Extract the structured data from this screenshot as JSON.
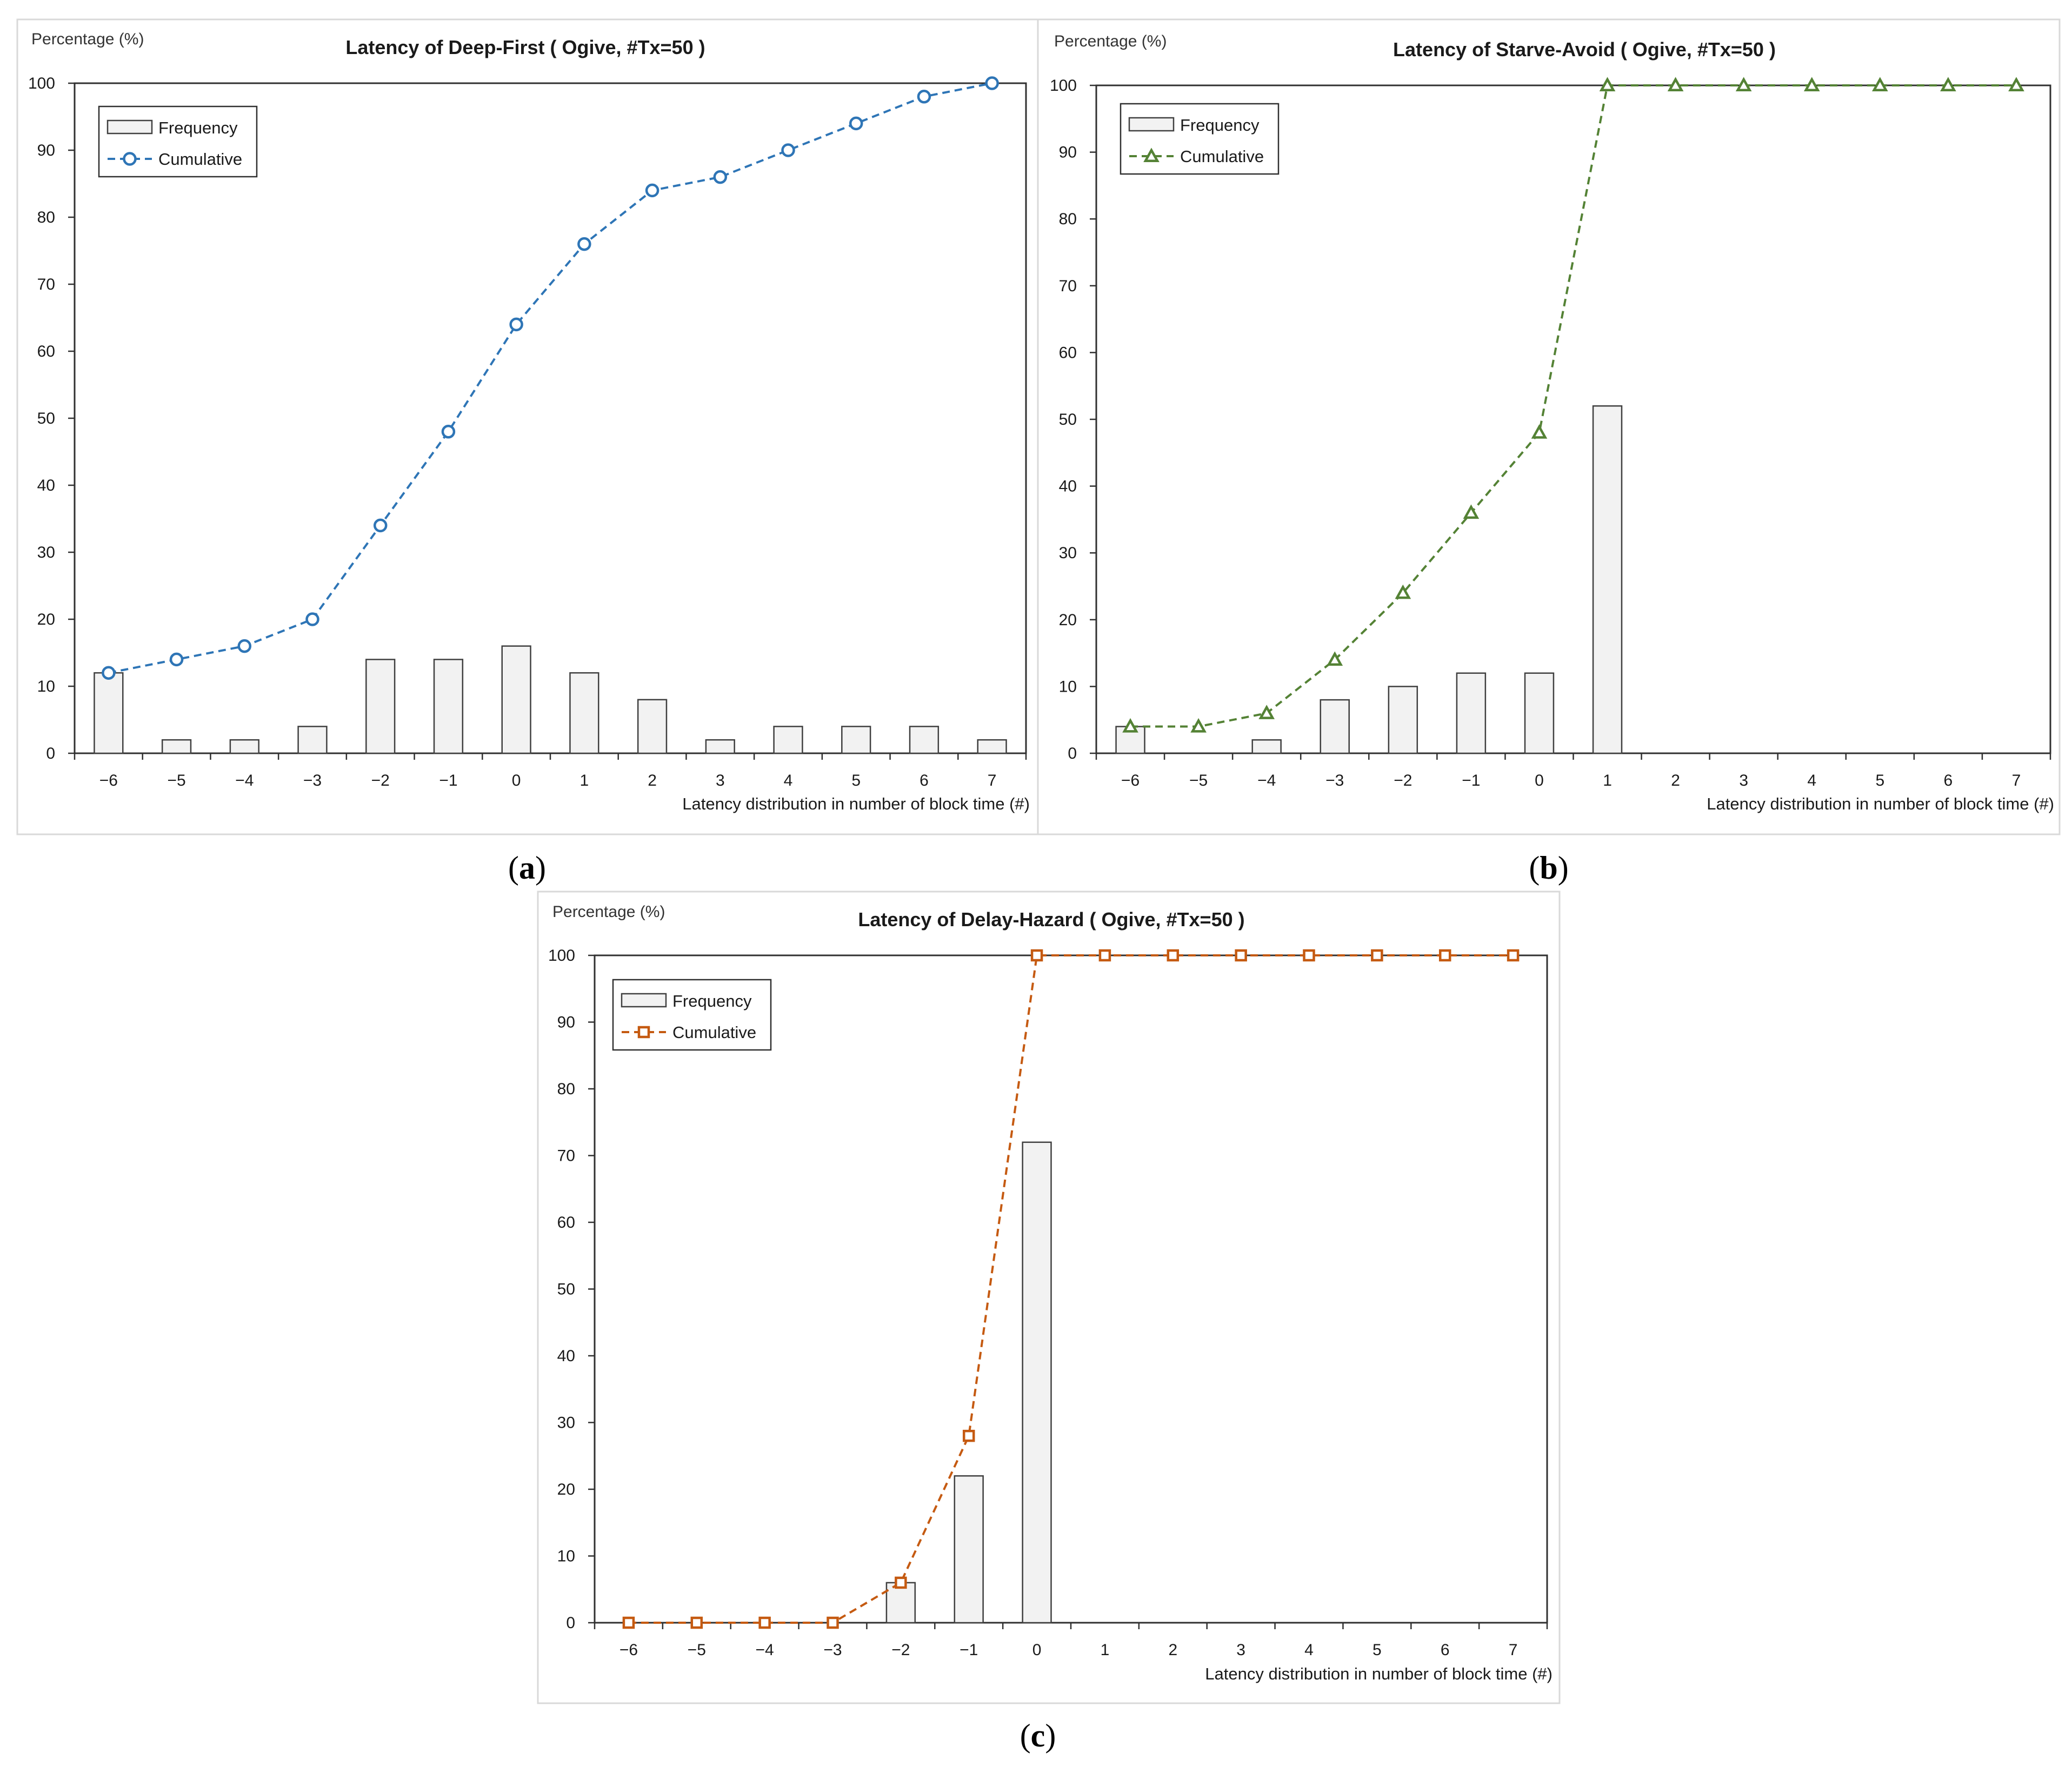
{
  "chart_data": [
    {
      "type": "bar+line",
      "title": "Latency of Deep-First ( Ogive, #Tx=50 )",
      "ylabel": "Percentage (%)",
      "xlabel": "Latency distribution in number of block time (#)",
      "caption_label": "a",
      "categories": [
        "−6",
        "−5",
        "−4",
        "−3",
        "−2",
        "−1",
        "0",
        "1",
        "2",
        "3",
        "4",
        "5",
        "6",
        "7"
      ],
      "y_ticks": [
        "0",
        "10",
        "20",
        "30",
        "40",
        "50",
        "60",
        "70",
        "80",
        "90",
        "100"
      ],
      "ylim": [
        0,
        100
      ],
      "legend_position": "top-left",
      "marker": "circle",
      "color": "#2e75b6",
      "series": [
        {
          "name": "Frequency",
          "type": "bar",
          "values": [
            12,
            2,
            2,
            4,
            14,
            14,
            16,
            12,
            8,
            2,
            4,
            4,
            4,
            2
          ]
        },
        {
          "name": "Cumulative",
          "type": "line",
          "values": [
            12,
            14,
            16,
            20,
            34,
            48,
            64,
            76,
            84,
            86,
            90,
            94,
            98,
            100
          ]
        }
      ]
    },
    {
      "type": "bar+line",
      "title": "Latency of Starve-Avoid ( Ogive, #Tx=50 )",
      "ylabel": "Percentage (%)",
      "xlabel": "Latency distribution in number of block time (#)",
      "caption_label": "b",
      "categories": [
        "−6",
        "−5",
        "−4",
        "−3",
        "−2",
        "−1",
        "0",
        "1",
        "2",
        "3",
        "4",
        "5",
        "6",
        "7"
      ],
      "y_ticks": [
        "0",
        "10",
        "20",
        "30",
        "40",
        "50",
        "60",
        "70",
        "80",
        "90",
        "100"
      ],
      "ylim": [
        0,
        100
      ],
      "legend_position": "top-left",
      "marker": "triangle",
      "color": "#548235",
      "series": [
        {
          "name": "Frequency",
          "type": "bar",
          "values": [
            4,
            0,
            2,
            8,
            10,
            12,
            12,
            52,
            0,
            0,
            0,
            0,
            0,
            0
          ]
        },
        {
          "name": "Cumulative",
          "type": "line",
          "values": [
            4,
            4,
            6,
            14,
            24,
            36,
            48,
            100,
            100,
            100,
            100,
            100,
            100,
            100
          ]
        }
      ]
    },
    {
      "type": "bar+line",
      "title": "Latency of Delay-Hazard ( Ogive, #Tx=50 )",
      "ylabel": "Percentage (%)",
      "xlabel": "Latency distribution in number of block time (#)",
      "caption_label": "c",
      "categories": [
        "−6",
        "−5",
        "−4",
        "−3",
        "−2",
        "−1",
        "0",
        "1",
        "2",
        "3",
        "4",
        "5",
        "6",
        "7"
      ],
      "y_ticks": [
        "0",
        "10",
        "20",
        "30",
        "40",
        "50",
        "60",
        "70",
        "80",
        "90",
        "100"
      ],
      "ylim": [
        0,
        100
      ],
      "legend_position": "top-left",
      "marker": "square",
      "color": "#c55a11",
      "series": [
        {
          "name": "Frequency",
          "type": "bar",
          "values": [
            0,
            0,
            0,
            0,
            6,
            22,
            72,
            0,
            0,
            0,
            0,
            0,
            0,
            0
          ]
        },
        {
          "name": "Cumulative",
          "type": "line",
          "values": [
            0,
            0,
            0,
            0,
            6,
            28,
            100,
            100,
            100,
            100,
            100,
            100,
            100,
            100
          ]
        }
      ]
    }
  ]
}
